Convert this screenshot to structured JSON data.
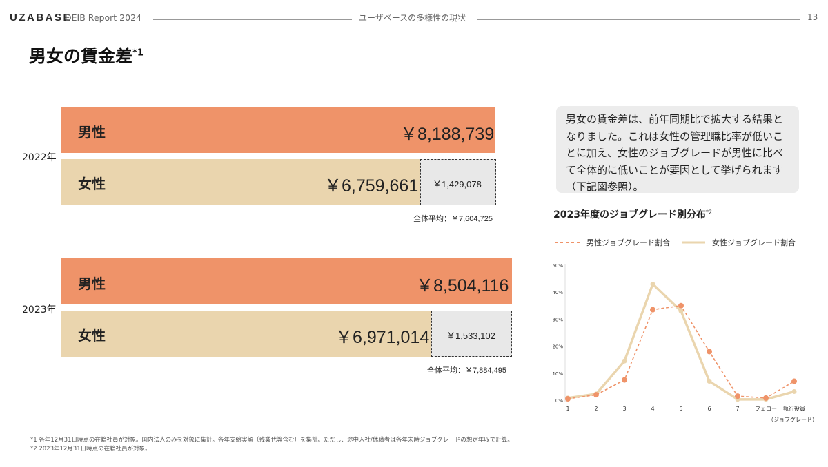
{
  "header": {
    "logo": "UZABASE",
    "report": "DEIB Report 2024",
    "section": "ユーザベースの多様性の現状",
    "page": "13"
  },
  "title": {
    "text": "男女の賃金差",
    "mark": "*1"
  },
  "wage": {
    "y2022": {
      "year": "2022年",
      "male_label": "男性",
      "male_value": "￥8,188,739",
      "male_amount": 8188739,
      "female_label": "女性",
      "female_value": "￥6,759,661",
      "female_amount": 6759661,
      "gap_value": "￥1,429,078",
      "avg": "全体平均：￥7,604,725"
    },
    "y2023": {
      "year": "2023年",
      "male_label": "男性",
      "male_value": "￥8,504,116",
      "male_amount": 8504116,
      "female_label": "女性",
      "female_value": "￥6,971,014",
      "female_amount": 6971014,
      "gap_value": "￥1,533,102",
      "avg": "全体平均：￥7,884,495"
    }
  },
  "note": {
    "lines": [
      "男女の賃金差は、前年同期比で拡大する結果と",
      "なりました。これは女性の管理職比率が低いこ",
      "とに加え、女性のジョブグレードが男性に比べ",
      "て全体的に低いことが要因として挙げられます",
      "（下記図参照）。"
    ]
  },
  "chart_data": {
    "type": "line",
    "title": "2023年度のジョブグレード別分布",
    "title_mark": "*2",
    "xlabel": "（ジョブグレード）",
    "ylabel": "",
    "categories": [
      "1",
      "2",
      "3",
      "4",
      "5",
      "6",
      "7",
      "フェロー",
      "執行役員"
    ],
    "yticks": [
      "0%",
      "10%",
      "20%",
      "30%",
      "40%",
      "50%"
    ],
    "ylim": [
      0,
      50
    ],
    "grid": false,
    "legend": "top",
    "series": [
      {
        "name": "男性ジョブグレード割合",
        "values": [
          0.5,
          2,
          7.5,
          33.5,
          35,
          18,
          1.5,
          0.8,
          7
        ],
        "color": "#ef9369",
        "style": "dashed-with-markers"
      },
      {
        "name": "女性ジョブグレード割合",
        "values": [
          0.8,
          2.3,
          14.5,
          43,
          33,
          7,
          0.3,
          0.3,
          3.2
        ],
        "color": "#ead5ae",
        "style": "solid"
      }
    ]
  },
  "footnotes": [
    "*1 各年12月31日時点の在籍社員が対象。国内法人のみを対象に集計。各年支給実額（残業代等含む）を集計。ただし、途中入社/休職者は各年末時ジョブグレードの想定年収で計算。",
    "*2 2023年12月31日時点の在籍社員が対象。"
  ],
  "colors": {
    "male": "#ef9369",
    "female": "#ead5ae",
    "gap": "#e8e8e8"
  }
}
